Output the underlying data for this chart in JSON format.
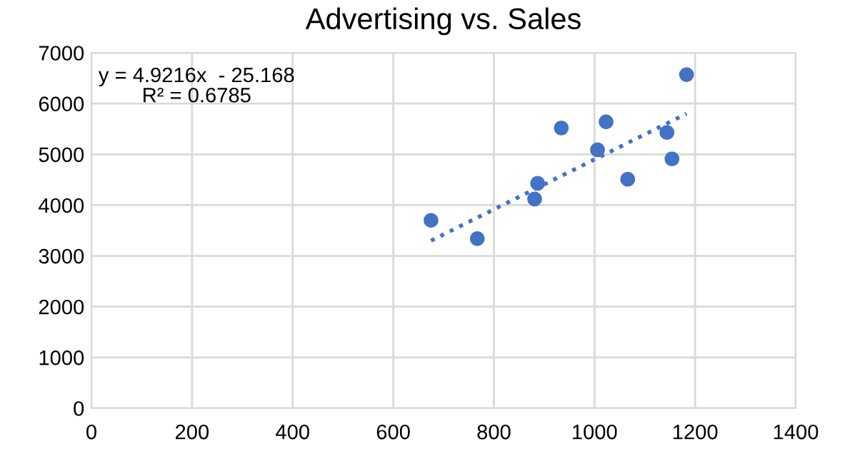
{
  "chart_data": {
    "type": "scatter",
    "title": "Advertising vs. Sales",
    "series": [
      {
        "color": "#4472c4",
        "marker": "circle",
        "x": [
          675,
          767,
          881,
          887,
          934,
          1006,
          1023,
          1066,
          1144,
          1154,
          1183
        ],
        "values": [
          3700,
          3340,
          4120,
          4430,
          5520,
          5090,
          5640,
          4510,
          5430,
          4910,
          6570
        ]
      },
      {
        "type": "line",
        "color": "#4472c4",
        "line_style": "dotted",
        "x": [
          675,
          1183
        ],
        "values": [
          3300,
          5800
        ]
      }
    ],
    "annotations": [
      "y = 4.9216x  - 25.168\nR² = 0.6785"
    ],
    "xlim": [
      0,
      1400
    ],
    "xticks": [
      0,
      200,
      400,
      600,
      800,
      1000,
      1200,
      1400
    ],
    "ylim": [
      0,
      7000
    ],
    "yticks": [
      0,
      1000,
      2000,
      3000,
      4000,
      5000,
      6000,
      7000
    ],
    "grid": true
  }
}
